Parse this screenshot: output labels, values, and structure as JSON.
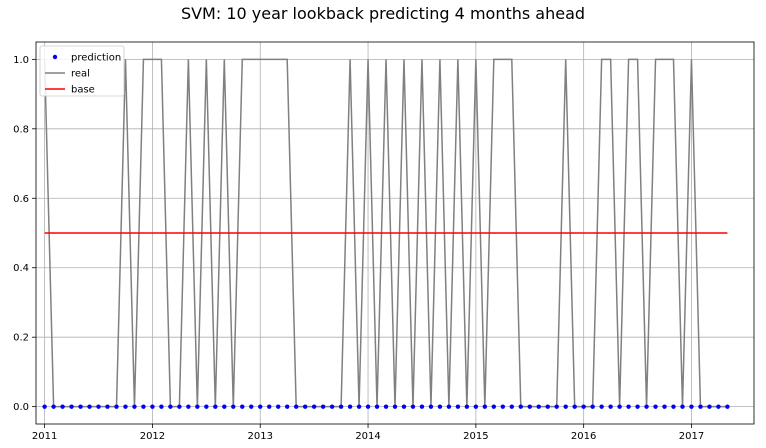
{
  "chart_data": {
    "type": "line",
    "title": "SVM: 10 year lookback predicting 4 months ahead",
    "xlabel": "",
    "ylabel": "",
    "xlim": [
      2010.92,
      2017.58
    ],
    "ylim": [
      -0.05,
      1.05
    ],
    "x_ticks": [
      2011,
      2012,
      2013,
      2014,
      2015,
      2016,
      2017
    ],
    "x_tick_labels": [
      "2011",
      "2012",
      "2013",
      "2014",
      "2015",
      "2016",
      "2017"
    ],
    "y_ticks": [
      0.0,
      0.2,
      0.4,
      0.6,
      0.8,
      1.0
    ],
    "y_tick_labels": [
      "0.0",
      "0.2",
      "0.4",
      "0.6",
      "0.8",
      "1.0"
    ],
    "grid": true,
    "legend_position": "top-left",
    "x_start": 2011.0,
    "x_step_months": 1,
    "series": [
      {
        "name": "prediction",
        "style": "points",
        "color": "#0000ff",
        "values": [
          0,
          0,
          0,
          0,
          0,
          0,
          0,
          0,
          0,
          0,
          0,
          0,
          0,
          0,
          0,
          0,
          0,
          0,
          0,
          0,
          0,
          0,
          0,
          0,
          0,
          0,
          0,
          0,
          0,
          0,
          0,
          0,
          0,
          0,
          0,
          0,
          0,
          0,
          0,
          0,
          0,
          0,
          0,
          0,
          0,
          0,
          0,
          0,
          0,
          0,
          0,
          0,
          0,
          0,
          0,
          0,
          0,
          0,
          0,
          0,
          0,
          0,
          0,
          0,
          0,
          0,
          0,
          0,
          0,
          0,
          0,
          0,
          0,
          0,
          0,
          0,
          0
        ]
      },
      {
        "name": "real",
        "style": "line",
        "color": "#808080",
        "values": [
          1,
          0,
          0,
          0,
          0,
          0,
          0,
          0,
          0,
          1,
          0,
          1,
          1,
          1,
          0,
          0,
          1,
          0,
          1,
          0,
          1,
          0,
          1,
          1,
          1,
          1,
          1,
          1,
          0,
          0,
          0,
          0,
          0,
          0,
          1,
          0,
          1,
          0,
          1,
          0,
          1,
          0,
          1,
          0,
          1,
          0,
          1,
          0,
          1,
          0,
          1,
          1,
          1,
          0,
          0,
          0,
          0,
          0,
          1,
          0,
          0,
          0,
          1,
          1,
          0,
          1,
          1,
          0,
          1,
          1,
          1,
          0,
          1,
          0,
          0,
          0,
          0
        ]
      },
      {
        "name": "base",
        "style": "line",
        "color": "#ff0000",
        "values": [
          0.5,
          0.5,
          0.5,
          0.5,
          0.5,
          0.5,
          0.5,
          0.5,
          0.5,
          0.5,
          0.5,
          0.5,
          0.5,
          0.5,
          0.5,
          0.5,
          0.5,
          0.5,
          0.5,
          0.5,
          0.5,
          0.5,
          0.5,
          0.5,
          0.5,
          0.5,
          0.5,
          0.5,
          0.5,
          0.5,
          0.5,
          0.5,
          0.5,
          0.5,
          0.5,
          0.5,
          0.5,
          0.5,
          0.5,
          0.5,
          0.5,
          0.5,
          0.5,
          0.5,
          0.5,
          0.5,
          0.5,
          0.5,
          0.5,
          0.5,
          0.5,
          0.5,
          0.5,
          0.5,
          0.5,
          0.5,
          0.5,
          0.5,
          0.5,
          0.5,
          0.5,
          0.5,
          0.5,
          0.5,
          0.5,
          0.5,
          0.5,
          0.5,
          0.5,
          0.5,
          0.5,
          0.5,
          0.5,
          0.5,
          0.5,
          0.5,
          0.5
        ]
      }
    ]
  }
}
